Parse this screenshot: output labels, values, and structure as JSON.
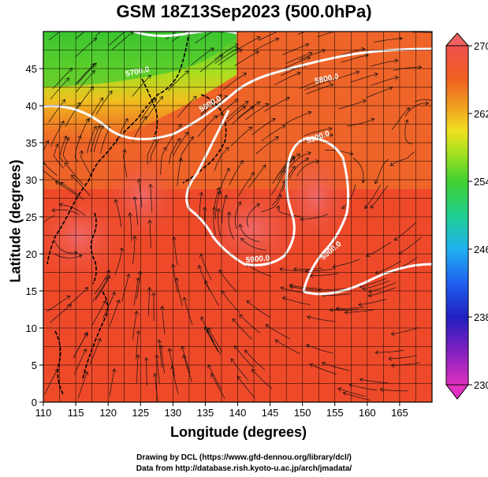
{
  "title": "GSM 18Z13Sep2023 (500.0hPa)",
  "x_axis": {
    "label": "Longitude (degrees)",
    "ticks": [
      "110",
      "115",
      "120",
      "125",
      "130",
      "135",
      "140",
      "145",
      "150",
      "155",
      "160",
      "165"
    ],
    "range": [
      110,
      170
    ]
  },
  "y_axis": {
    "label": "Latitude  (degrees)",
    "ticks": [
      "0",
      "5",
      "10",
      "15",
      "20",
      "25",
      "30",
      "35",
      "40",
      "45"
    ],
    "range": [
      0,
      50
    ]
  },
  "colorbar": {
    "ticks": [
      "270",
      "262",
      "254",
      "246",
      "238",
      "230"
    ],
    "range": [
      230,
      270
    ],
    "colors": [
      "#e040c0",
      "#a020c0",
      "#3020c0",
      "#2060f0",
      "#20c0f0",
      "#20d0a0",
      "#40d040",
      "#a0e020",
      "#f0e020",
      "#f0a020",
      "#f06020",
      "#e04040",
      "#f06060"
    ]
  },
  "contours": [
    {
      "label": "5700.0"
    },
    {
      "label": "5800.0"
    },
    {
      "label": "5800.0"
    },
    {
      "label": "5900.0"
    },
    {
      "label": "5900.0"
    },
    {
      "label": "5900.0"
    }
  ],
  "credits": {
    "line1": "Drawing by DCL (https://www.gfd-dennou.org/library/dcl/)",
    "line2": "Data from http://database.rish.kyoto-u.ac.jp/arch/jmadata/"
  },
  "colors": {
    "warm": "#ee4a2a",
    "hot": "#f06a6a",
    "orange": "#f08a20",
    "yellow": "#e8d020",
    "green": "#50d030",
    "contour": "#ffffff"
  }
}
